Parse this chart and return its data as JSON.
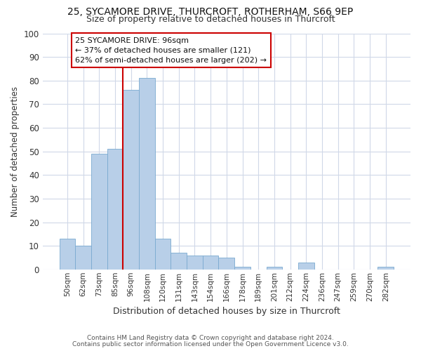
{
  "title1": "25, SYCAMORE DRIVE, THURCROFT, ROTHERHAM, S66 9EP",
  "title2": "Size of property relative to detached houses in Thurcroft",
  "xlabel": "Distribution of detached houses by size in Thurcroft",
  "ylabel": "Number of detached properties",
  "categories": [
    "50sqm",
    "62sqm",
    "73sqm",
    "85sqm",
    "96sqm",
    "108sqm",
    "120sqm",
    "131sqm",
    "143sqm",
    "154sqm",
    "166sqm",
    "178sqm",
    "189sqm",
    "201sqm",
    "212sqm",
    "224sqm",
    "236sqm",
    "247sqm",
    "259sqm",
    "270sqm",
    "282sqm"
  ],
  "values": [
    13,
    10,
    49,
    51,
    76,
    81,
    13,
    7,
    6,
    6,
    5,
    1,
    0,
    1,
    0,
    3,
    0,
    0,
    0,
    0,
    1
  ],
  "bar_color": "#b8cfe8",
  "bar_edge_color": "#7aaad0",
  "property_index": 4,
  "property_line_color": "#cc0000",
  "annotation_box_color": "#cc0000",
  "annotation_text": "25 SYCAMORE DRIVE: 96sqm\n← 37% of detached houses are smaller (121)\n62% of semi-detached houses are larger (202) →",
  "ylim": [
    0,
    100
  ],
  "yticks": [
    0,
    10,
    20,
    30,
    40,
    50,
    60,
    70,
    80,
    90,
    100
  ],
  "footnote1": "Contains HM Land Registry data © Crown copyright and database right 2024.",
  "footnote2": "Contains public sector information licensed under the Open Government Licence v3.0.",
  "bg_color": "#ffffff",
  "plot_bg_color": "#ffffff",
  "grid_color": "#d0d8e8",
  "title1_fontsize": 10,
  "title2_fontsize": 9
}
